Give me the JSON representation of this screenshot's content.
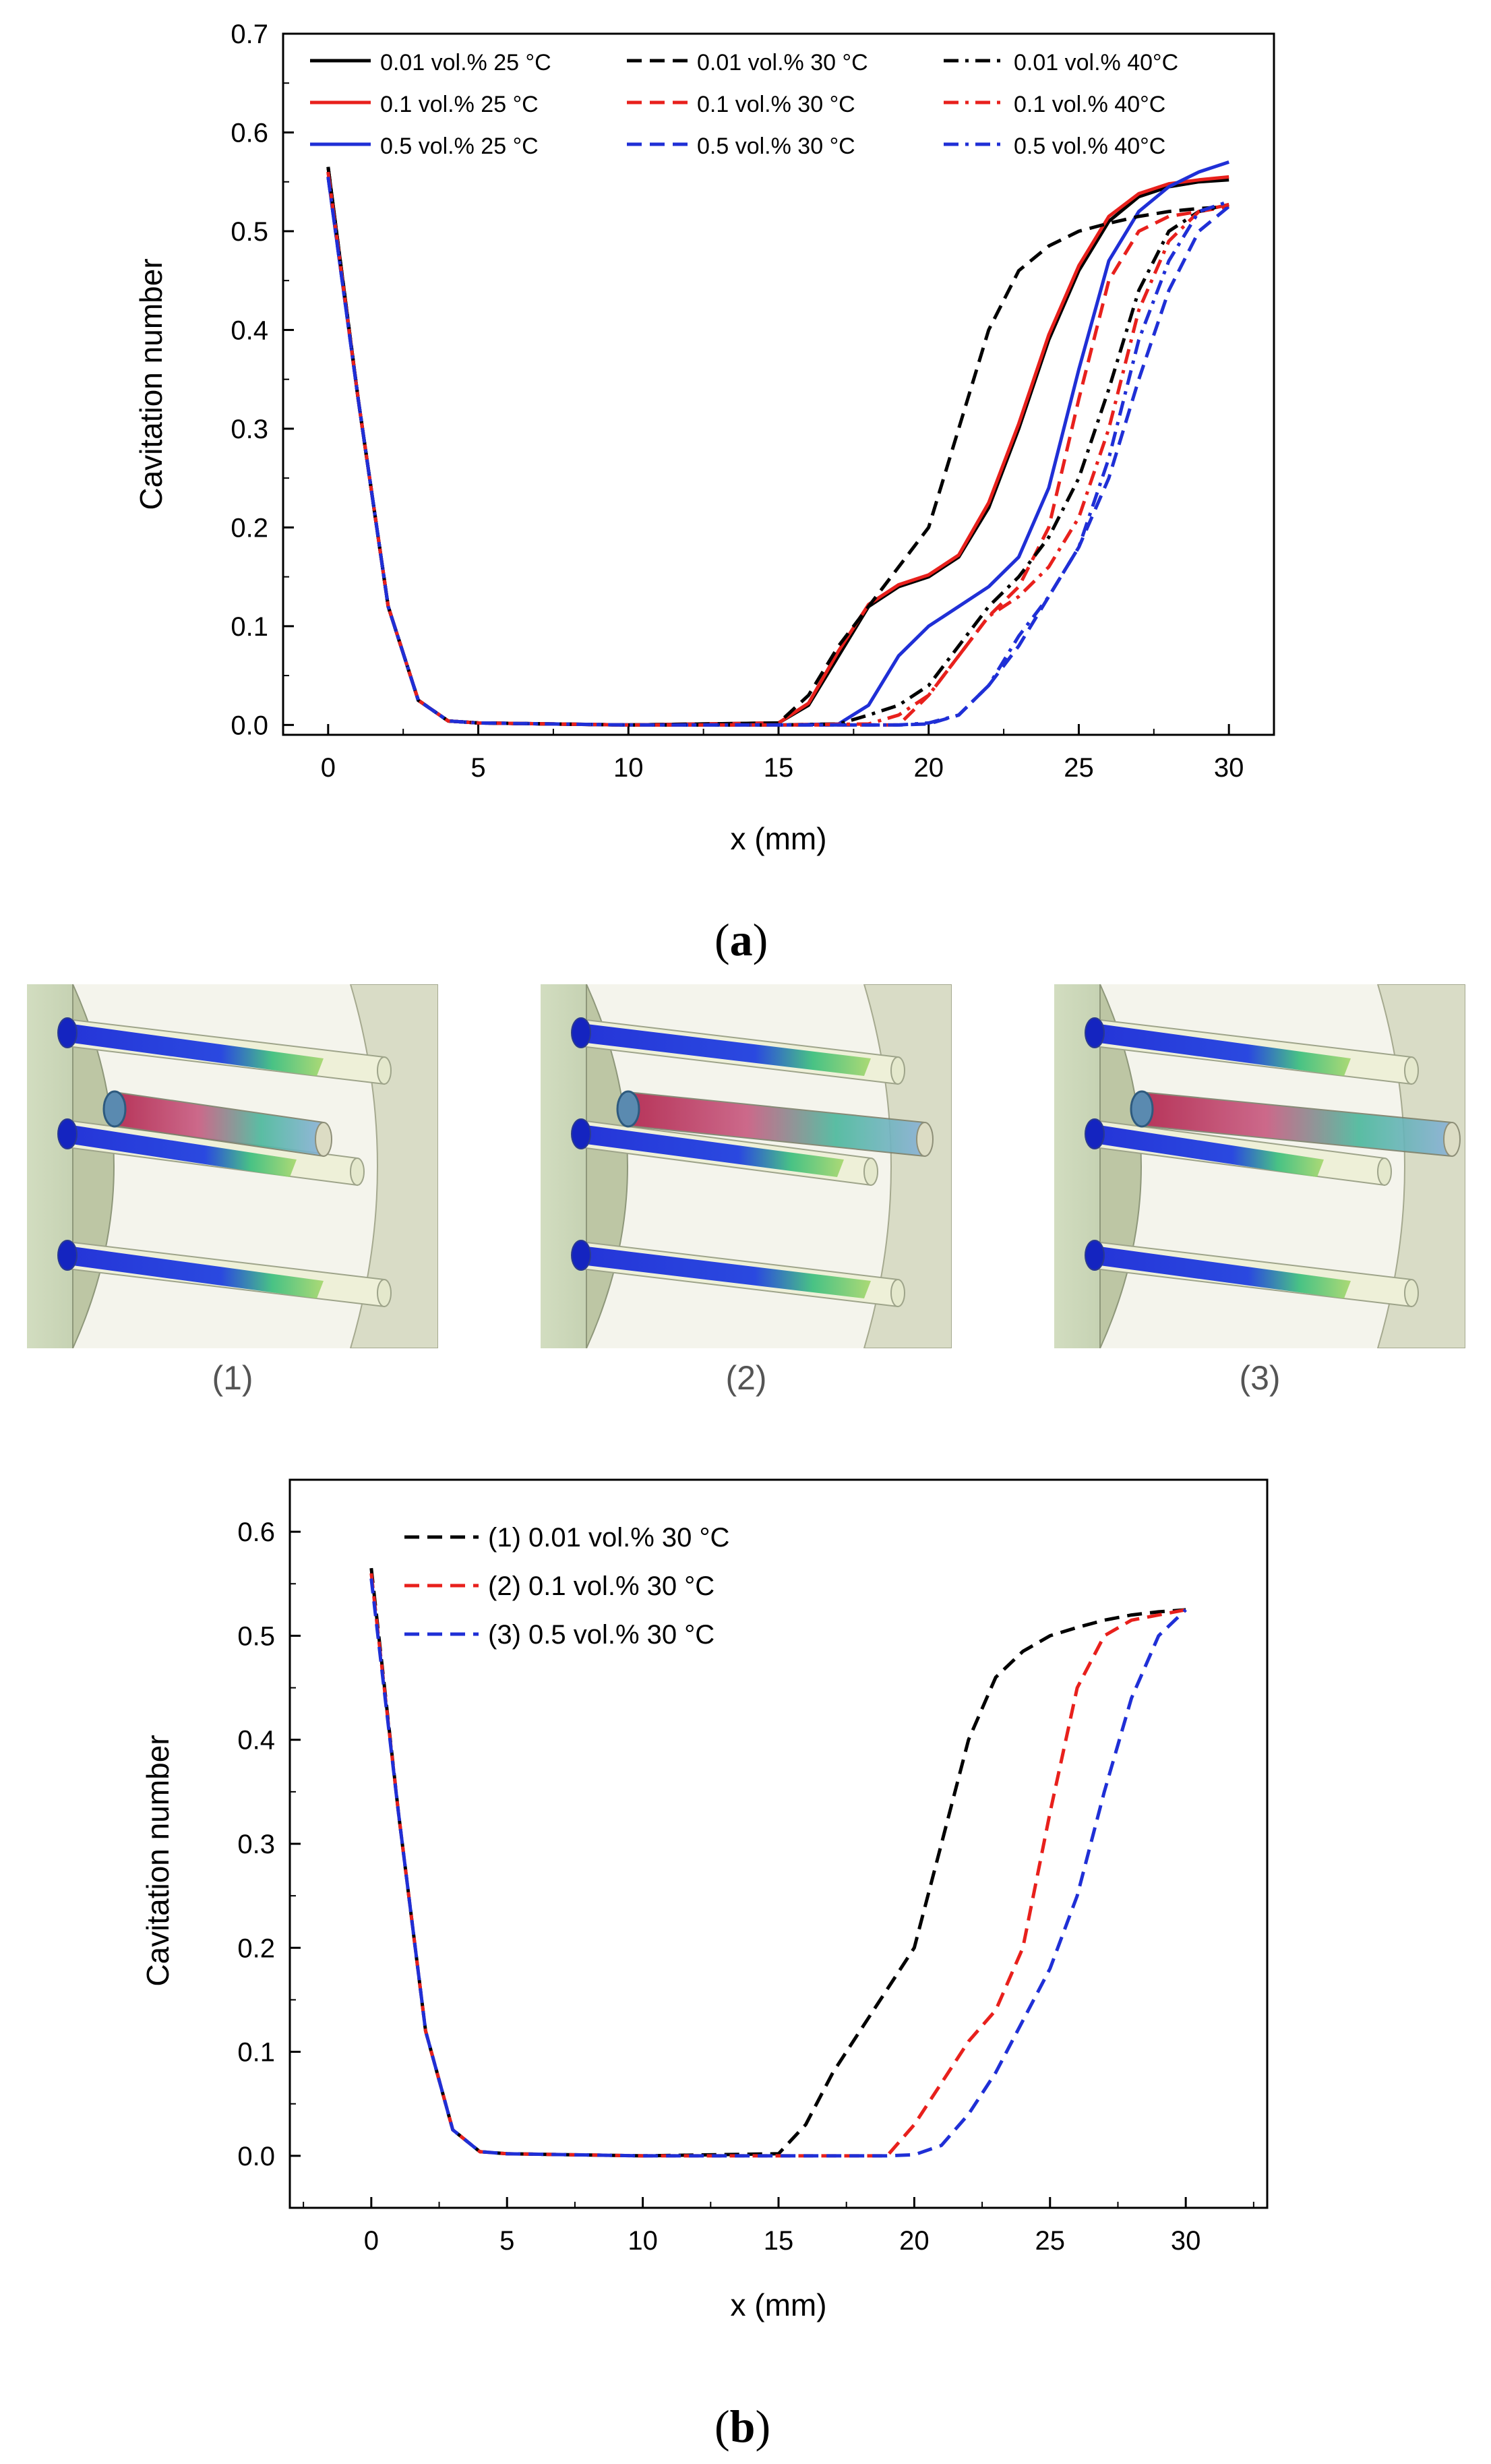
{
  "panel_a_label": "a",
  "panel_b_label": "b",
  "render_captions": [
    "(1)",
    "(2)",
    "(3)"
  ],
  "colors": {
    "black": "#000000",
    "red": "#e8201c",
    "blue": "#1f2fd6"
  },
  "chart_data": [
    {
      "id": "a",
      "type": "line",
      "title": "",
      "xlabel": "x (mm)",
      "ylabel": "Cavitation number",
      "xlim": [
        -1.5,
        31.5
      ],
      "ylim": [
        -0.01,
        0.7
      ],
      "xticks": [
        0,
        5,
        10,
        15,
        20,
        25,
        30
      ],
      "yticks": [
        0.0,
        0.1,
        0.2,
        0.3,
        0.4,
        0.5,
        0.6,
        0.7
      ],
      "legend": "top, 3 columns",
      "series": [
        {
          "name": "0.01 vol.% 25 °C",
          "color": "black",
          "dash": "solid",
          "x": [
            0,
            1,
            2,
            3,
            4,
            5,
            10,
            15,
            16,
            17,
            18,
            19,
            20,
            21,
            22,
            23,
            24,
            25,
            26,
            27,
            28,
            29,
            30
          ],
          "y": [
            0.565,
            0.33,
            0.12,
            0.025,
            0.004,
            0.002,
            0.0,
            0.002,
            0.02,
            0.07,
            0.12,
            0.14,
            0.15,
            0.17,
            0.22,
            0.3,
            0.39,
            0.46,
            0.51,
            0.535,
            0.545,
            0.55,
            0.552
          ]
        },
        {
          "name": "0.1 vol.% 25 °C",
          "color": "red",
          "dash": "solid",
          "x": [
            0,
            1,
            2,
            3,
            4,
            5,
            10,
            15,
            16,
            17,
            18,
            19,
            20,
            21,
            22,
            23,
            24,
            25,
            26,
            27,
            28,
            29,
            30
          ],
          "y": [
            0.56,
            0.33,
            0.12,
            0.025,
            0.004,
            0.002,
            0.0,
            0.002,
            0.022,
            0.075,
            0.122,
            0.142,
            0.152,
            0.172,
            0.225,
            0.305,
            0.395,
            0.465,
            0.515,
            0.538,
            0.548,
            0.552,
            0.555
          ]
        },
        {
          "name": "0.5 vol.% 25 °C",
          "color": "blue",
          "dash": "solid",
          "x": [
            0,
            1,
            2,
            3,
            4,
            5,
            10,
            15,
            17,
            18,
            19,
            20,
            21,
            22,
            23,
            24,
            25,
            26,
            27,
            28,
            29,
            30
          ],
          "y": [
            0.555,
            0.33,
            0.12,
            0.025,
            0.004,
            0.002,
            0.0,
            0.0,
            0.001,
            0.02,
            0.07,
            0.1,
            0.12,
            0.14,
            0.17,
            0.24,
            0.36,
            0.47,
            0.52,
            0.545,
            0.56,
            0.57
          ]
        },
        {
          "name": "0.01 vol.% 30 °C",
          "color": "black",
          "dash": "dashed",
          "x": [
            0,
            1,
            2,
            3,
            4,
            5,
            10,
            15,
            16,
            17,
            18,
            19,
            20,
            21,
            22,
            23,
            24,
            25,
            26,
            27,
            28,
            29,
            30
          ],
          "y": [
            0.565,
            0.33,
            0.12,
            0.025,
            0.004,
            0.002,
            0.0,
            0.002,
            0.03,
            0.08,
            0.12,
            0.16,
            0.2,
            0.3,
            0.4,
            0.46,
            0.485,
            0.5,
            0.508,
            0.515,
            0.52,
            0.523,
            0.525
          ]
        },
        {
          "name": "0.1 vol.% 30 °C",
          "color": "red",
          "dash": "dashed",
          "x": [
            0,
            1,
            2,
            3,
            4,
            5,
            10,
            15,
            19,
            20,
            21,
            22,
            23,
            24,
            25,
            26,
            27,
            28,
            29,
            30
          ],
          "y": [
            0.56,
            0.33,
            0.12,
            0.025,
            0.004,
            0.002,
            0.0,
            0.0,
            0.0,
            0.03,
            0.07,
            0.11,
            0.14,
            0.2,
            0.33,
            0.45,
            0.5,
            0.515,
            0.52,
            0.525
          ]
        },
        {
          "name": "0.5 vol.% 30 °C",
          "color": "blue",
          "dash": "dashed",
          "x": [
            0,
            1,
            2,
            3,
            4,
            5,
            10,
            15,
            19,
            20,
            21,
            22,
            23,
            24,
            25,
            26,
            27,
            28,
            29,
            30
          ],
          "y": [
            0.555,
            0.33,
            0.12,
            0.025,
            0.004,
            0.002,
            0.0,
            0.0,
            0.0,
            0.001,
            0.01,
            0.04,
            0.08,
            0.13,
            0.18,
            0.25,
            0.35,
            0.44,
            0.5,
            0.525
          ]
        },
        {
          "name": "0.01 vol.% 40°C",
          "color": "black",
          "dash": "dashdot",
          "x": [
            0,
            1,
            2,
            3,
            4,
            5,
            10,
            15,
            17,
            18,
            19,
            20,
            21,
            22,
            23,
            24,
            25,
            26,
            27,
            28,
            29,
            30
          ],
          "y": [
            0.565,
            0.33,
            0.12,
            0.025,
            0.004,
            0.002,
            0.0,
            0.0,
            0.001,
            0.01,
            0.02,
            0.04,
            0.08,
            0.12,
            0.15,
            0.19,
            0.25,
            0.34,
            0.44,
            0.5,
            0.52,
            0.527
          ]
        },
        {
          "name": "0.1 vol.% 40°C",
          "color": "red",
          "dash": "dashdot",
          "x": [
            0,
            1,
            2,
            3,
            4,
            5,
            10,
            15,
            18,
            19,
            20,
            21,
            22,
            23,
            24,
            25,
            26,
            27,
            28,
            29,
            30
          ],
          "y": [
            0.56,
            0.33,
            0.12,
            0.025,
            0.004,
            0.002,
            0.0,
            0.0,
            0.001,
            0.01,
            0.03,
            0.07,
            0.11,
            0.13,
            0.16,
            0.21,
            0.3,
            0.42,
            0.49,
            0.52,
            0.527
          ]
        },
        {
          "name": "0.5 vol.% 40°C",
          "color": "blue",
          "dash": "dashdot",
          "x": [
            0,
            1,
            2,
            3,
            4,
            5,
            10,
            15,
            19,
            20,
            21,
            22,
            23,
            24,
            25,
            26,
            27,
            28,
            29,
            30
          ],
          "y": [
            0.555,
            0.33,
            0.12,
            0.025,
            0.004,
            0.002,
            0.0,
            0.0,
            0.0,
            0.002,
            0.01,
            0.04,
            0.09,
            0.13,
            0.18,
            0.27,
            0.39,
            0.47,
            0.52,
            0.53
          ]
        }
      ]
    },
    {
      "id": "b",
      "type": "line",
      "title": "",
      "xlabel": "x (mm)",
      "ylabel": "Cavitation number",
      "xlim": [
        -3,
        33
      ],
      "ylim": [
        -0.05,
        0.65
      ],
      "xticks": [
        0,
        5,
        10,
        15,
        20,
        25,
        30
      ],
      "yticks": [
        0.0,
        0.1,
        0.2,
        0.3,
        0.4,
        0.5,
        0.6
      ],
      "legend": "top-left",
      "series": [
        {
          "name": "(1) 0.01 vol.% 30 °C",
          "color": "black",
          "dash": "dashed",
          "x": [
            0,
            1,
            2,
            3,
            4,
            5,
            10,
            15,
            16,
            17,
            18,
            19,
            20,
            21,
            22,
            23,
            24,
            25,
            26,
            27,
            28,
            29,
            30
          ],
          "y": [
            0.565,
            0.33,
            0.12,
            0.025,
            0.004,
            0.002,
            0.0,
            0.002,
            0.03,
            0.08,
            0.12,
            0.16,
            0.2,
            0.3,
            0.4,
            0.46,
            0.485,
            0.5,
            0.508,
            0.515,
            0.52,
            0.523,
            0.525
          ]
        },
        {
          "name": "(2) 0.1 vol.% 30 °C",
          "color": "red",
          "dash": "dashed",
          "x": [
            0,
            1,
            2,
            3,
            4,
            5,
            10,
            15,
            19,
            20,
            21,
            22,
            23,
            24,
            25,
            26,
            27,
            28,
            29,
            30
          ],
          "y": [
            0.56,
            0.33,
            0.12,
            0.025,
            0.004,
            0.002,
            0.0,
            0.0,
            0.0,
            0.03,
            0.07,
            0.11,
            0.14,
            0.2,
            0.33,
            0.45,
            0.5,
            0.515,
            0.52,
            0.525
          ]
        },
        {
          "name": "(3) 0.5 vol.% 30 °C",
          "color": "blue",
          "dash": "dashed",
          "x": [
            0,
            1,
            2,
            3,
            4,
            5,
            10,
            15,
            19,
            20,
            21,
            22,
            23,
            24,
            25,
            26,
            27,
            28,
            29,
            30
          ],
          "y": [
            0.555,
            0.33,
            0.12,
            0.025,
            0.004,
            0.002,
            0.0,
            0.0,
            0.0,
            0.001,
            0.01,
            0.04,
            0.08,
            0.13,
            0.18,
            0.25,
            0.35,
            0.44,
            0.5,
            0.525
          ]
        }
      ]
    }
  ]
}
